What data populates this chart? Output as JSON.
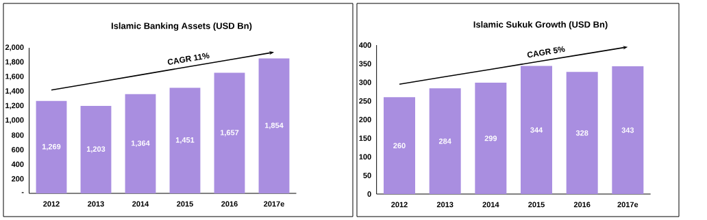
{
  "chart_data": [
    {
      "type": "bar",
      "title": "Islamic Banking Assets (USD Bn)",
      "categories": [
        "2012",
        "2013",
        "2014",
        "2015",
        "2016",
        "2017e"
      ],
      "ylim": [
        0,
        2000
      ],
      "yticks": [
        {
          "value": 0,
          "label": "-"
        },
        200,
        400,
        600,
        800,
        {
          "value": 1000,
          "label": "1,000"
        },
        {
          "value": 1200,
          "label": "1,200"
        },
        {
          "value": 1400,
          "label": "1,400"
        },
        {
          "value": 1600,
          "label": "1,600"
        },
        {
          "value": 1800,
          "label": "1,800"
        },
        {
          "value": 2000,
          "label": "2,000"
        }
      ],
      "series": [
        {
          "color": "#a98ee0",
          "values": [
            1269,
            1203,
            1364,
            1451,
            1657,
            1854
          ],
          "value_labels": [
            "1,269",
            "1,203",
            "1,364",
            "1,451",
            "1,657",
            "1,854"
          ]
        },
        {
          "type": "line",
          "color": "#000000",
          "values": [
            1420,
            1524,
            1628,
            1732,
            1836,
            1940
          ]
        }
      ],
      "annotations": [
        "CAGR 11%"
      ],
      "grid": false
    },
    {
      "type": "bar",
      "title": "Islamic Sukuk Growth (USD Bn)",
      "categories": [
        "2012",
        "2013",
        "2014",
        "2015",
        "2016",
        "2017e"
      ],
      "ylim": [
        0,
        400
      ],
      "yticks": [
        0,
        50,
        100,
        150,
        200,
        250,
        300,
        350,
        400
      ],
      "series": [
        {
          "color": "#a98ee0",
          "values": [
            260,
            284,
            299,
            344,
            328,
            343
          ],
          "value_labels": [
            "260",
            "284",
            "299",
            "344",
            "328",
            "343"
          ]
        },
        {
          "type": "line",
          "color": "#000000",
          "values": [
            295,
            315,
            335,
            355,
            375,
            395
          ]
        }
      ],
      "annotations": [
        "CAGR 5%"
      ],
      "grid": false
    }
  ]
}
